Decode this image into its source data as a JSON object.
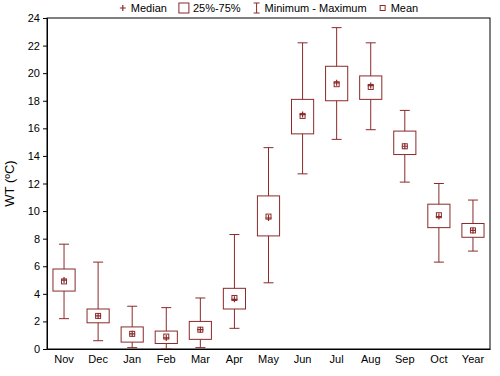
{
  "chart_data": {
    "type": "box",
    "y_label": "WT (ºC)",
    "categories": [
      "Nov",
      "Dec",
      "Jan",
      "Feb",
      "Mar",
      "Apr",
      "May",
      "Jun",
      "Jul",
      "Aug",
      "Sep",
      "Oct",
      "Year"
    ],
    "color": "#8b2a2a",
    "legend": "top",
    "grid": false,
    "ylim": [
      0,
      24
    ],
    "yticks": [
      0,
      2,
      4,
      6,
      8,
      10,
      12,
      14,
      16,
      18,
      20,
      22,
      24
    ],
    "series": [
      {
        "name": "Median",
        "marker": "plus",
        "values": [
          5.0,
          2.4,
          1.1,
          0.8,
          1.4,
          3.6,
          9.5,
          17.0,
          19.3,
          19.1,
          14.7,
          9.6,
          8.6
        ]
      },
      {
        "name": "25%-75%",
        "type": "box",
        "low": [
          4.2,
          1.9,
          0.5,
          0.4,
          0.7,
          2.9,
          8.2,
          15.6,
          18.0,
          18.1,
          14.1,
          8.8,
          8.1
        ],
        "high": [
          5.8,
          2.9,
          1.6,
          1.3,
          2.0,
          4.4,
          11.1,
          18.1,
          20.5,
          19.8,
          15.8,
          10.5,
          9.1
        ]
      },
      {
        "name": "Minimum - Maximum",
        "type": "whisker",
        "low": [
          2.2,
          0.6,
          0.1,
          0.0,
          0.1,
          1.5,
          4.8,
          12.7,
          15.2,
          15.9,
          12.1,
          6.3,
          7.1
        ],
        "high": [
          7.6,
          6.3,
          3.1,
          3.0,
          3.7,
          8.3,
          14.6,
          22.2,
          23.3,
          22.2,
          17.3,
          12.0,
          10.8
        ]
      },
      {
        "name": "Mean",
        "marker": "square",
        "values": [
          4.9,
          2.4,
          1.1,
          0.9,
          1.4,
          3.7,
          9.6,
          16.9,
          19.2,
          19.0,
          14.7,
          9.7,
          8.6
        ]
      }
    ]
  }
}
